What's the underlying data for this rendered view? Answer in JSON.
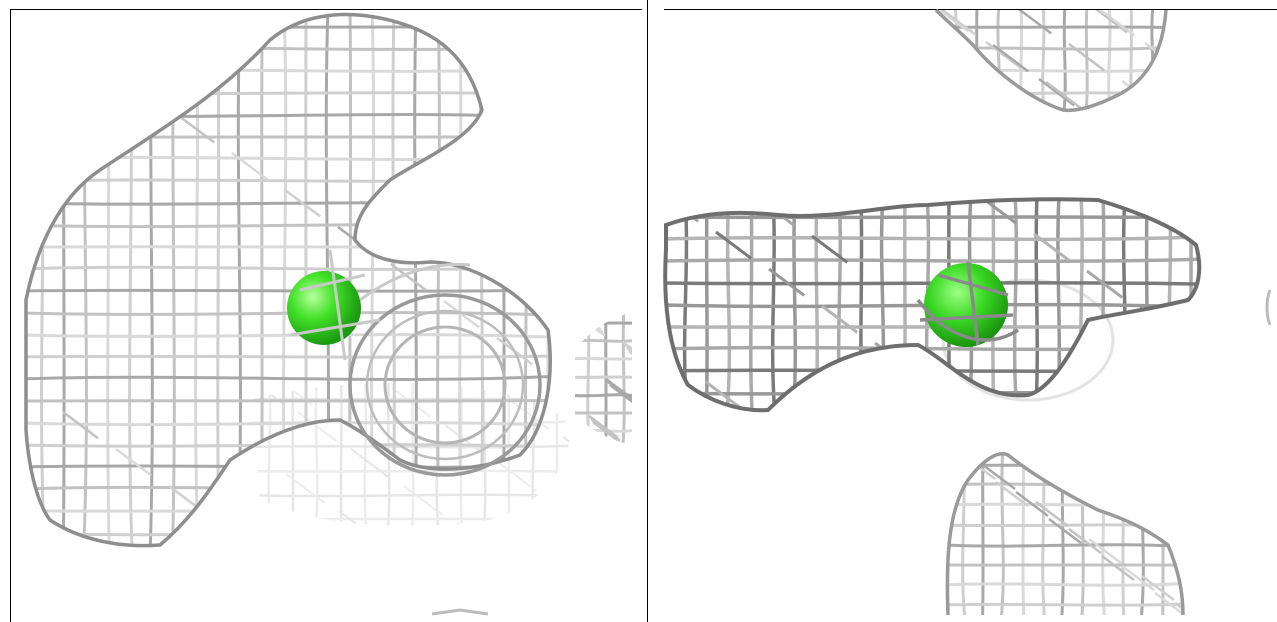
{
  "figure": {
    "panels": [
      {
        "id": "left",
        "content": "electron-density-mesh",
        "sphere_color": "#33dd22"
      },
      {
        "id": "right",
        "content": "electron-density-mesh",
        "sphere_color": "#33dd22"
      }
    ],
    "colors": {
      "mesh_light": "#d9d9d9",
      "mesh_mid": "#a8a8a8",
      "mesh_dark": "#7a7a7a",
      "sphere": "#33dd22",
      "frame": "#000000"
    }
  }
}
